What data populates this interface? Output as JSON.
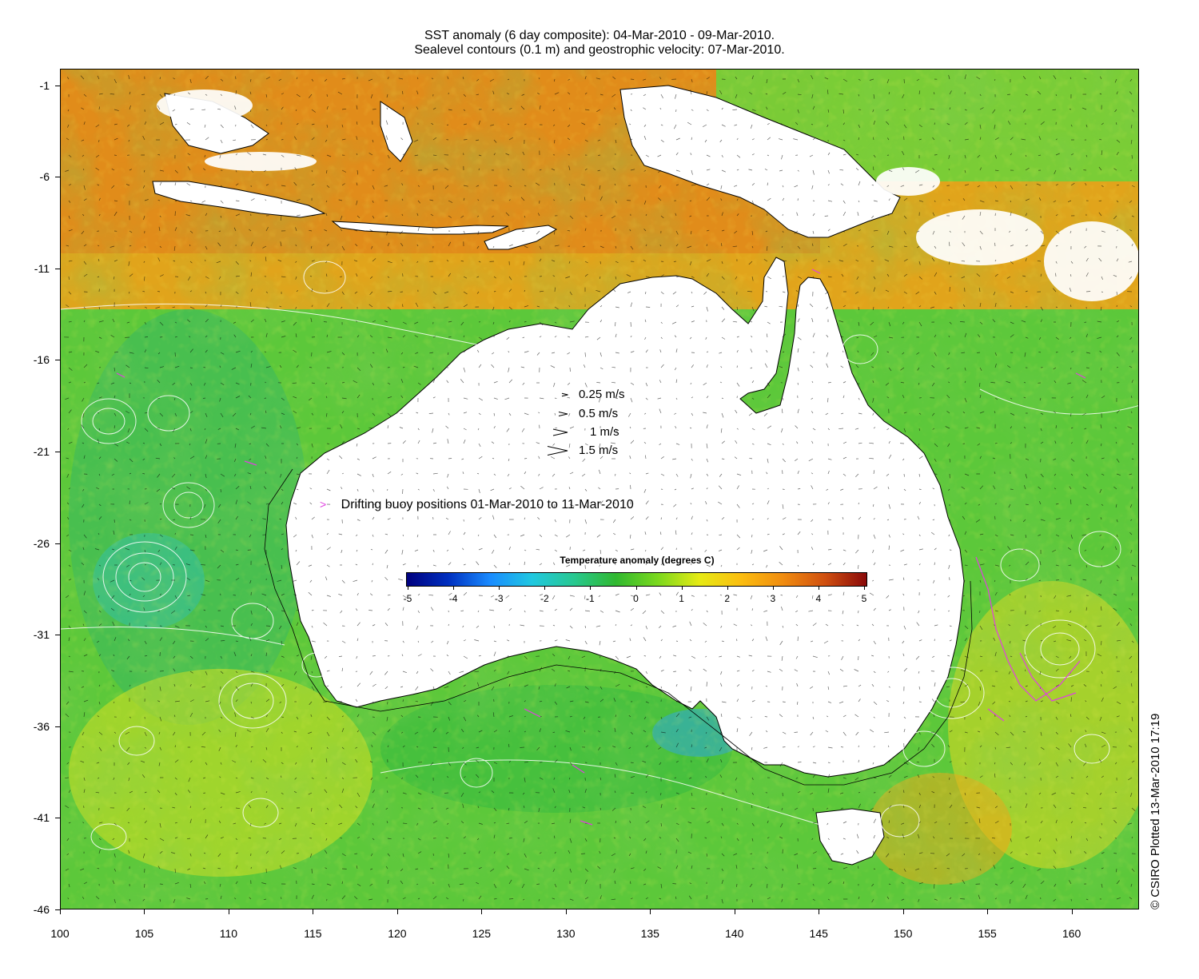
{
  "title": {
    "line1": "SST anomaly (6 day composite): 04-Mar-2010 - 09-Mar-2010.",
    "line2": "Sealevel contours (0.1 m) and geostrophic velocity: 07-Mar-2010."
  },
  "map": {
    "lon_range": [
      100,
      164
    ],
    "lat_range": [
      -46,
      -0.1
    ],
    "x_ticks": [
      "100",
      "105",
      "110",
      "115",
      "120",
      "125",
      "130",
      "135",
      "140",
      "145",
      "150",
      "155",
      "160"
    ],
    "y_ticks": [
      "-1",
      "-6",
      "-11",
      "-16",
      "-21",
      "-26",
      "-31",
      "-36",
      "-41",
      "-46"
    ],
    "land_color": "#ffffff",
    "contour_color": "#ffffff",
    "vector_color": "#000000"
  },
  "speed_legend": [
    {
      "label": "0.25 m/s",
      "speed": 0.25
    },
    {
      "label": "0.5 m/s",
      "speed": 0.5
    },
    {
      "label": "1 m/s",
      "speed": 1
    },
    {
      "label": "1.5 m/s",
      "speed": 1.5
    }
  ],
  "buoy_legend": {
    "marker": ">",
    "label": "Drifting buoy positions 01-Mar-2010 to 11-Mar-2010",
    "color": "#e040e0"
  },
  "colorbar": {
    "title": "Temperature anomaly (degrees C)",
    "ticks": [
      "-5",
      "-4",
      "-3",
      "-2",
      "-1",
      "0",
      "1",
      "2",
      "3",
      "4",
      "5"
    ],
    "range": [
      -5,
      5
    ],
    "colors": [
      "#00007f",
      "#0030c0",
      "#1a8cff",
      "#20c8e0",
      "#28c890",
      "#30b830",
      "#7ad81e",
      "#e6ea14",
      "#fbbd10",
      "#f08c10",
      "#d05010",
      "#8a0a0a"
    ]
  },
  "credit": "© CSIRO Plotted 13-Mar-2010 17:19"
}
